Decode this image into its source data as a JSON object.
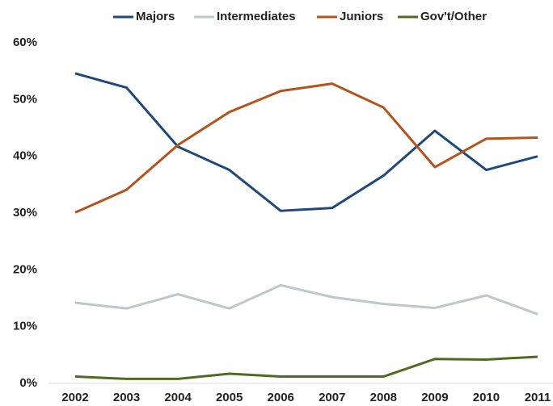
{
  "chart_data": {
    "type": "line",
    "categories": [
      "2002",
      "2003",
      "2004",
      "2005",
      "2006",
      "2007",
      "2008",
      "2009",
      "2010",
      "2011"
    ],
    "series": [
      {
        "name": "Majors",
        "color": "#1f497d",
        "values": [
          54.6,
          52.1,
          41.7,
          37.6,
          30.4,
          30.9,
          36.6,
          44.5,
          37.6,
          40.0
        ]
      },
      {
        "name": "Intermediates",
        "color": "#c0c6cc",
        "values": [
          14.2,
          13.2,
          15.7,
          13.2,
          17.3,
          15.2,
          14.0,
          13.3,
          15.5,
          12.2
        ]
      },
      {
        "name": "Juniors",
        "color": "#b5531c",
        "values": [
          30.1,
          34.1,
          42.0,
          47.8,
          51.5,
          52.8,
          48.6,
          38.1,
          43.1,
          43.3
        ]
      },
      {
        "name": "Gov't/Other",
        "color": "#4f6b22",
        "values": [
          1.2,
          0.8,
          0.8,
          1.7,
          1.2,
          1.2,
          1.2,
          4.3,
          4.2,
          4.7
        ]
      }
    ],
    "ylim": [
      0,
      60
    ],
    "yticks": [
      {
        "value": 0,
        "label": "0%"
      },
      {
        "value": 10,
        "label": "10%"
      },
      {
        "value": 20,
        "label": "20%"
      },
      {
        "value": 30,
        "label": "30%"
      },
      {
        "value": 40,
        "label": "40%"
      },
      {
        "value": 50,
        "label": "50%"
      },
      {
        "value": 60,
        "label": "60%"
      }
    ],
    "grid": false,
    "legend": "top"
  }
}
